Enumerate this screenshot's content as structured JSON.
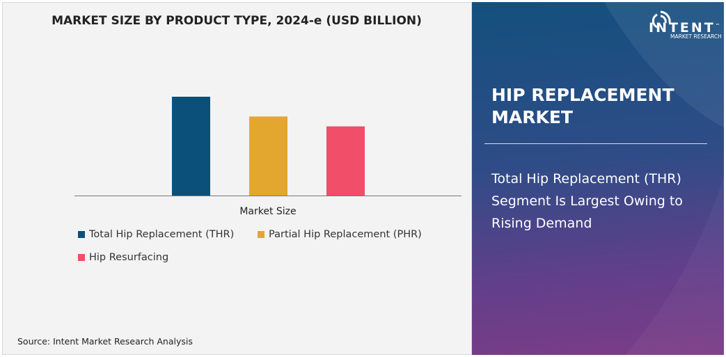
{
  "chart_data": {
    "type": "bar",
    "title": "MARKET SIZE BY PRODUCT TYPE, 2024-e (USD BILLION)",
    "xlabel": "Market Size",
    "ylabel": "",
    "categories": [
      "Market Size"
    ],
    "series": [
      {
        "name": "Total Hip Replacement (THR)",
        "values": [
          100
        ],
        "color": "#0b4f7b"
      },
      {
        "name": "Partial Hip Replacement (PHR)",
        "values": [
          80
        ],
        "color": "#e3a72f"
      },
      {
        "name": "Hip Resurfacing",
        "values": [
          70
        ],
        "color": "#f04e69"
      }
    ],
    "ylim": [
      0,
      100
    ],
    "grid": false,
    "legend": "bottom-left"
  },
  "source": "Source: Intent Market Research Analysis",
  "panel": {
    "title": "HIP REPLACEMENT MARKET",
    "text": "Total Hip Replacement (THR) Segment Is Largest Owing to Rising Demand",
    "logo": {
      "brand": "INTENT",
      "tm": "™",
      "sub": "MARKET RESEARCH"
    }
  }
}
